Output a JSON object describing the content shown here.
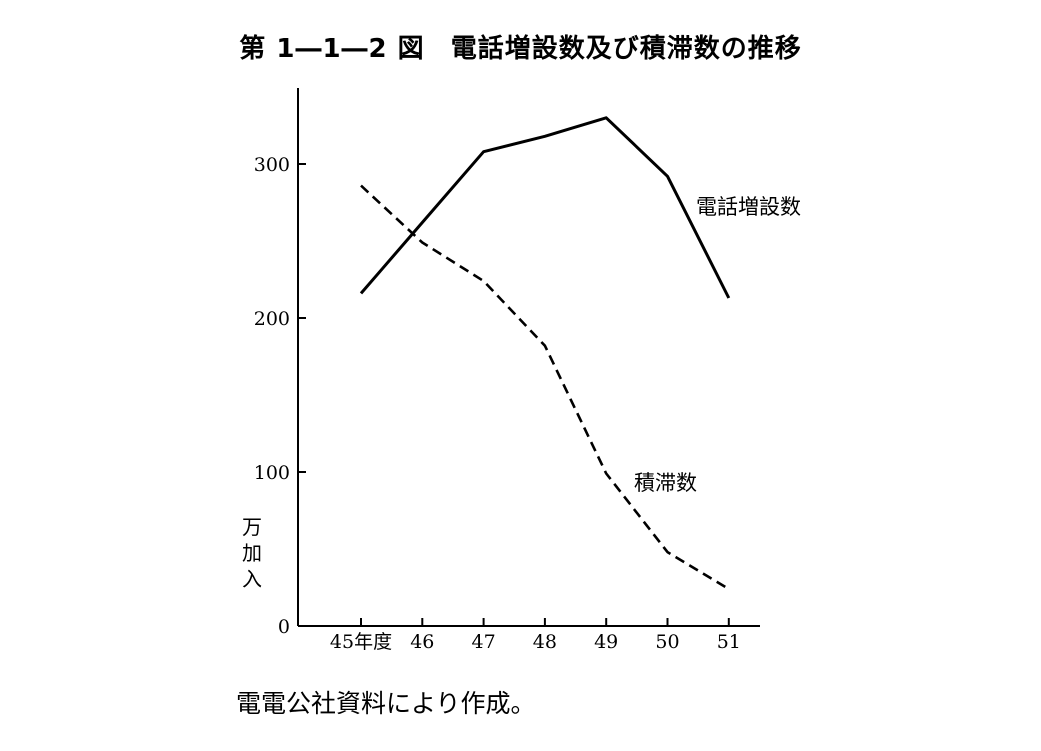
{
  "figure": {
    "number": "第 1―1―2 図",
    "title": "電話増設数及び積滞数の推移"
  },
  "source_note": "電電公社資料により作成。",
  "chart_data": {
    "type": "line",
    "categories": [
      "45年度",
      "46",
      "47",
      "48",
      "49",
      "50",
      "51"
    ],
    "ylim": [
      0,
      350
    ],
    "yticks": [
      0,
      100,
      200,
      300
    ],
    "ylabel": "万加入",
    "xlabel": "",
    "grid": false,
    "series": [
      {
        "name": "電話増設数",
        "style": "solid",
        "color": "#000000",
        "values": [
          216,
          262,
          308,
          318,
          330,
          292,
          213
        ]
      },
      {
        "name": "積滞数",
        "style": "dashed",
        "color": "#000000",
        "values": [
          286,
          249,
          224,
          182,
          99,
          48,
          24
        ]
      }
    ]
  }
}
